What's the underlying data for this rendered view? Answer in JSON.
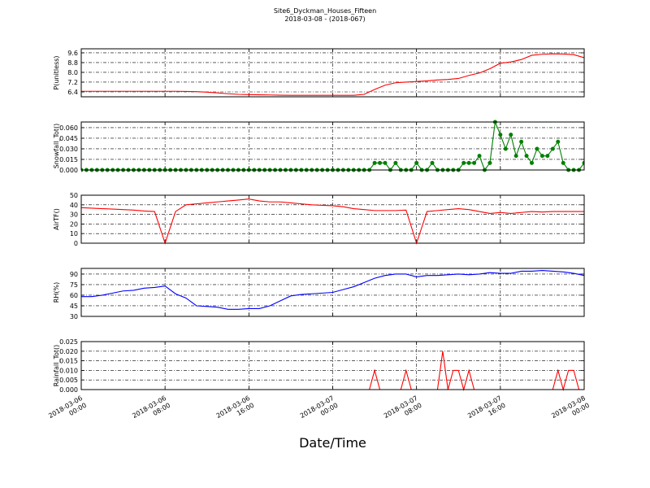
{
  "chart_data": [
    {
      "type": "line",
      "title": "Site6_Dyckman_Houses_Fifteen",
      "subtitle": "2018-03-08 - (2018-067)",
      "ylabel": "P(unitless)",
      "color": "#ff0000",
      "ylim": [
        6.0,
        9.93
      ],
      "yticks": [
        6.4,
        7.2,
        {
          "value": 8,
          "label": "8.0"
        },
        8.8,
        9.6
      ],
      "grid": true,
      "x": [
        "2018-03-06 00:00",
        "2018-03-06 01:00",
        "2018-03-06 02:00",
        "2018-03-06 03:00",
        "2018-03-06 04:00",
        "2018-03-06 05:00",
        "2018-03-06 06:00",
        "2018-03-06 07:00",
        "2018-03-06 08:00",
        "2018-03-06 09:00",
        "2018-03-06 10:00",
        "2018-03-06 11:00",
        "2018-03-06 12:00",
        "2018-03-06 13:00",
        "2018-03-06 14:00",
        "2018-03-06 15:00",
        "2018-03-06 16:00",
        "2018-03-06 17:00",
        "2018-03-06 18:00",
        "2018-03-06 19:00",
        "2018-03-06 20:00",
        "2018-03-06 21:00",
        "2018-03-06 22:00",
        "2018-03-06 23:00",
        "2018-03-07 00:00",
        "2018-03-07 01:00",
        "2018-03-07 02:00",
        "2018-03-07 03:00",
        "2018-03-07 04:00",
        "2018-03-07 05:00",
        "2018-03-07 06:00",
        "2018-03-07 07:00",
        "2018-03-07 08:00",
        "2018-03-07 09:00",
        "2018-03-07 10:00",
        "2018-03-07 11:00",
        "2018-03-07 12:00",
        "2018-03-07 13:00",
        "2018-03-07 14:00",
        "2018-03-07 15:00",
        "2018-03-07 16:00",
        "2018-03-07 17:00",
        "2018-03-07 18:00",
        "2018-03-07 19:00",
        "2018-03-07 20:00",
        "2018-03-07 21:00",
        "2018-03-07 22:00",
        "2018-03-07 23:00",
        "2018-03-08 00:00"
      ],
      "values": [
        6.45,
        6.45,
        6.45,
        6.45,
        6.45,
        6.45,
        6.45,
        6.45,
        6.45,
        6.45,
        6.44,
        6.42,
        6.38,
        6.32,
        6.25,
        6.2,
        6.18,
        6.16,
        6.15,
        6.13,
        6.12,
        6.12,
        6.12,
        6.12,
        6.12,
        6.12,
        6.12,
        6.2,
        6.6,
        6.95,
        7.15,
        7.2,
        7.25,
        7.3,
        7.38,
        7.42,
        7.5,
        7.75,
        7.95,
        8.3,
        8.75,
        8.85,
        9.05,
        9.4,
        9.48,
        9.52,
        9.5,
        9.45,
        9.2
      ]
    },
    {
      "type": "line",
      "ylabel": "Snowfall_Tot()",
      "color": "#008000",
      "marker": "o",
      "ylim": [
        0,
        0.068
      ],
      "yticks": [
        {
          "value": 0,
          "label": "0.000"
        },
        {
          "value": 0.015,
          "label": "0.015"
        },
        {
          "value": 0.03,
          "label": "0.030"
        },
        {
          "value": 0.045,
          "label": "0.045"
        },
        {
          "value": 0.06,
          "label": "0.060"
        }
      ],
      "grid": true,
      "x": [
        "2018-03-06 00:00",
        "2018-03-06 00:30",
        "2018-03-06 01:00",
        "2018-03-06 01:30",
        "2018-03-06 02:00",
        "2018-03-06 02:30",
        "2018-03-06 03:00",
        "2018-03-06 03:30",
        "2018-03-06 04:00",
        "2018-03-06 04:30",
        "2018-03-06 05:00",
        "2018-03-06 05:30",
        "2018-03-06 06:00",
        "2018-03-06 06:30",
        "2018-03-06 07:00",
        "2018-03-06 07:30",
        "2018-03-06 08:00",
        "2018-03-06 08:30",
        "2018-03-06 09:00",
        "2018-03-06 09:30",
        "2018-03-06 10:00",
        "2018-03-06 10:30",
        "2018-03-06 11:00",
        "2018-03-06 11:30",
        "2018-03-06 12:00",
        "2018-03-06 12:30",
        "2018-03-06 13:00",
        "2018-03-06 13:30",
        "2018-03-06 14:00",
        "2018-03-06 14:30",
        "2018-03-06 15:00",
        "2018-03-06 15:30",
        "2018-03-06 16:00",
        "2018-03-06 16:30",
        "2018-03-06 17:00",
        "2018-03-06 17:30",
        "2018-03-06 18:00",
        "2018-03-06 18:30",
        "2018-03-06 19:00",
        "2018-03-06 19:30",
        "2018-03-06 20:00",
        "2018-03-06 20:30",
        "2018-03-06 21:00",
        "2018-03-06 21:30",
        "2018-03-06 22:00",
        "2018-03-06 22:30",
        "2018-03-06 23:00",
        "2018-03-06 23:30",
        "2018-03-07 00:00",
        "2018-03-07 00:30",
        "2018-03-07 01:00",
        "2018-03-07 01:30",
        "2018-03-07 02:00",
        "2018-03-07 02:30",
        "2018-03-07 03:00",
        "2018-03-07 03:30",
        "2018-03-07 04:00",
        "2018-03-07 04:30",
        "2018-03-07 05:00",
        "2018-03-07 05:30",
        "2018-03-07 06:00",
        "2018-03-07 06:30",
        "2018-03-07 07:00",
        "2018-03-07 07:30",
        "2018-03-07 08:00",
        "2018-03-07 08:30",
        "2018-03-07 09:00",
        "2018-03-07 09:30",
        "2018-03-07 10:00",
        "2018-03-07 10:30",
        "2018-03-07 11:00",
        "2018-03-07 11:30",
        "2018-03-07 12:00",
        "2018-03-07 12:30",
        "2018-03-07 13:00",
        "2018-03-07 13:30",
        "2018-03-07 14:00",
        "2018-03-07 14:30",
        "2018-03-07 15:00",
        "2018-03-07 15:30",
        "2018-03-07 16:00",
        "2018-03-07 16:30",
        "2018-03-07 17:00",
        "2018-03-07 17:30",
        "2018-03-07 18:00",
        "2018-03-07 18:30",
        "2018-03-07 19:00",
        "2018-03-07 19:30",
        "2018-03-07 20:00",
        "2018-03-07 20:30",
        "2018-03-07 21:00",
        "2018-03-07 21:30",
        "2018-03-07 22:00",
        "2018-03-07 22:30",
        "2018-03-07 23:00",
        "2018-03-07 23:30",
        "2018-03-08 00:00"
      ],
      "values": [
        0,
        0,
        0,
        0,
        0,
        0,
        0,
        0,
        0,
        0,
        0,
        0,
        0,
        0,
        0,
        0,
        0,
        0,
        0,
        0,
        0,
        0,
        0,
        0,
        0,
        0,
        0,
        0,
        0,
        0,
        0,
        0,
        0,
        0,
        0,
        0,
        0,
        0,
        0,
        0,
        0,
        0,
        0,
        0,
        0,
        0,
        0,
        0,
        0,
        0,
        0,
        0,
        0,
        0,
        0,
        0,
        0.01,
        0.01,
        0.01,
        0,
        0.01,
        0,
        0,
        0,
        0.01,
        0,
        0,
        0.01,
        0,
        0,
        0,
        0,
        0,
        0.01,
        0.01,
        0.01,
        0.02,
        0,
        0.01,
        0.068,
        0.05,
        0.03,
        0.05,
        0.02,
        0.04,
        0.02,
        0.01,
        0.03,
        0.02,
        0.02,
        0.03,
        0.04,
        0.01,
        0,
        0,
        0,
        0.01
      ]
    },
    {
      "type": "line",
      "ylabel": "AirTF()",
      "color": "#ff0000",
      "ylim": [
        0,
        50
      ],
      "yticks": [
        0,
        10,
        20,
        30,
        40,
        50
      ],
      "grid": true,
      "x": [
        "2018-03-06 00:00",
        "2018-03-06 01:00",
        "2018-03-06 02:00",
        "2018-03-06 03:00",
        "2018-03-06 04:00",
        "2018-03-06 05:00",
        "2018-03-06 06:00",
        "2018-03-06 07:00",
        "2018-03-06 08:00",
        "2018-03-06 09:00",
        "2018-03-06 10:00",
        "2018-03-06 11:00",
        "2018-03-06 12:00",
        "2018-03-06 13:00",
        "2018-03-06 14:00",
        "2018-03-06 15:00",
        "2018-03-06 16:00",
        "2018-03-06 17:00",
        "2018-03-06 18:00",
        "2018-03-06 19:00",
        "2018-03-06 20:00",
        "2018-03-06 21:00",
        "2018-03-06 22:00",
        "2018-03-06 23:00",
        "2018-03-07 00:00",
        "2018-03-07 01:00",
        "2018-03-07 02:00",
        "2018-03-07 03:00",
        "2018-03-07 04:00",
        "2018-03-07 05:00",
        "2018-03-07 06:00",
        "2018-03-07 07:00",
        "2018-03-07 08:00",
        "2018-03-07 09:00",
        "2018-03-07 10:00",
        "2018-03-07 11:00",
        "2018-03-07 12:00",
        "2018-03-07 13:00",
        "2018-03-07 14:00",
        "2018-03-07 15:00",
        "2018-03-07 16:00",
        "2018-03-07 17:00",
        "2018-03-07 18:00",
        "2018-03-07 19:00",
        "2018-03-07 20:00",
        "2018-03-07 21:00",
        "2018-03-07 22:00",
        "2018-03-07 23:00",
        "2018-03-08 00:00"
      ],
      "values": [
        37,
        36.5,
        36,
        35.5,
        35,
        34.5,
        33.5,
        33,
        0,
        33,
        40,
        41,
        42,
        43,
        44,
        45,
        46,
        44,
        43,
        43,
        42,
        41,
        40,
        39.5,
        39,
        38,
        36,
        35,
        34,
        34,
        34,
        34.5,
        0,
        33,
        34,
        35,
        36,
        35,
        33,
        31,
        32,
        31,
        32,
        33,
        32.5,
        33,
        33,
        33,
        33
      ]
    },
    {
      "type": "line",
      "ylabel": "RH(%)",
      "color": "#0000ff",
      "ylim": [
        30,
        98
      ],
      "yticks": [
        30,
        45,
        60,
        75,
        90
      ],
      "grid": true,
      "x": [
        "2018-03-06 00:00",
        "2018-03-06 01:00",
        "2018-03-06 02:00",
        "2018-03-06 03:00",
        "2018-03-06 04:00",
        "2018-03-06 05:00",
        "2018-03-06 06:00",
        "2018-03-06 07:00",
        "2018-03-06 08:00",
        "2018-03-06 09:00",
        "2018-03-06 10:00",
        "2018-03-06 11:00",
        "2018-03-06 12:00",
        "2018-03-06 13:00",
        "2018-03-06 14:00",
        "2018-03-06 15:00",
        "2018-03-06 16:00",
        "2018-03-06 17:00",
        "2018-03-06 18:00",
        "2018-03-06 19:00",
        "2018-03-06 20:00",
        "2018-03-06 21:00",
        "2018-03-06 22:00",
        "2018-03-06 23:00",
        "2018-03-07 00:00",
        "2018-03-07 01:00",
        "2018-03-07 02:00",
        "2018-03-07 03:00",
        "2018-03-07 04:00",
        "2018-03-07 05:00",
        "2018-03-07 06:00",
        "2018-03-07 07:00",
        "2018-03-07 08:00",
        "2018-03-07 09:00",
        "2018-03-07 10:00",
        "2018-03-07 11:00",
        "2018-03-07 12:00",
        "2018-03-07 13:00",
        "2018-03-07 14:00",
        "2018-03-07 15:00",
        "2018-03-07 16:00",
        "2018-03-07 17:00",
        "2018-03-07 18:00",
        "2018-03-07 19:00",
        "2018-03-07 20:00",
        "2018-03-07 21:00",
        "2018-03-07 22:00",
        "2018-03-07 23:00",
        "2018-03-08 00:00"
      ],
      "values": [
        58,
        58,
        60,
        63,
        66,
        67,
        70,
        71,
        73,
        62,
        56,
        45,
        44,
        43,
        40,
        40,
        41,
        41,
        45,
        52,
        59,
        61,
        62,
        63,
        64,
        68,
        72,
        78,
        84,
        88,
        90,
        90,
        86,
        88,
        88,
        89,
        90,
        89,
        90,
        92,
        91,
        91,
        94,
        94,
        95,
        94,
        93,
        91,
        88
      ]
    },
    {
      "type": "line",
      "ylabel": "Rainfall_Tot()",
      "xlabel": "Date/Time",
      "color": "#ff0000",
      "ylim": [
        0,
        0.025
      ],
      "yticks": [
        {
          "value": 0,
          "label": "0.000"
        },
        {
          "value": 0.005,
          "label": "0.005"
        },
        {
          "value": 0.01,
          "label": "0.010"
        },
        {
          "value": 0.015,
          "label": "0.015"
        },
        {
          "value": 0.02,
          "label": "0.020"
        },
        {
          "value": 0.025,
          "label": "0.025"
        }
      ],
      "grid": true,
      "xlim": [
        "2018-03-06 00:00",
        "2018-03-08 00:00"
      ],
      "xticks": [
        "2018-03-06 00:00",
        "2018-03-06 08:00",
        "2018-03-06 16:00",
        "2018-03-07 00:00",
        "2018-03-07 08:00",
        "2018-03-07 16:00",
        "2018-03-08 00:00"
      ],
      "x": [
        "2018-03-06 00:00",
        "2018-03-06 00:30",
        "2018-03-06 01:00",
        "2018-03-06 01:30",
        "2018-03-06 02:00",
        "2018-03-06 02:30",
        "2018-03-06 03:00",
        "2018-03-06 03:30",
        "2018-03-06 04:00",
        "2018-03-06 04:30",
        "2018-03-06 05:00",
        "2018-03-06 05:30",
        "2018-03-06 06:00",
        "2018-03-06 06:30",
        "2018-03-06 07:00",
        "2018-03-06 07:30",
        "2018-03-06 08:00",
        "2018-03-06 08:30",
        "2018-03-06 09:00",
        "2018-03-06 09:30",
        "2018-03-06 10:00",
        "2018-03-06 10:30",
        "2018-03-06 11:00",
        "2018-03-06 11:30",
        "2018-03-06 12:00",
        "2018-03-06 12:30",
        "2018-03-06 13:00",
        "2018-03-06 13:30",
        "2018-03-06 14:00",
        "2018-03-06 14:30",
        "2018-03-06 15:00",
        "2018-03-06 15:30",
        "2018-03-06 16:00",
        "2018-03-06 16:30",
        "2018-03-06 17:00",
        "2018-03-06 17:30",
        "2018-03-06 18:00",
        "2018-03-06 18:30",
        "2018-03-06 19:00",
        "2018-03-06 19:30",
        "2018-03-06 20:00",
        "2018-03-06 20:30",
        "2018-03-06 21:00",
        "2018-03-06 21:30",
        "2018-03-06 22:00",
        "2018-03-06 22:30",
        "2018-03-06 23:00",
        "2018-03-06 23:30",
        "2018-03-07 00:00",
        "2018-03-07 00:30",
        "2018-03-07 01:00",
        "2018-03-07 01:30",
        "2018-03-07 02:00",
        "2018-03-07 02:30",
        "2018-03-07 03:00",
        "2018-03-07 03:30",
        "2018-03-07 04:00",
        "2018-03-07 04:30",
        "2018-03-07 05:00",
        "2018-03-07 05:30",
        "2018-03-07 06:00",
        "2018-03-07 06:30",
        "2018-03-07 07:00",
        "2018-03-07 07:30",
        "2018-03-07 08:00",
        "2018-03-07 08:30",
        "2018-03-07 09:00",
        "2018-03-07 09:30",
        "2018-03-07 10:00",
        "2018-03-07 10:30",
        "2018-03-07 11:00",
        "2018-03-07 11:30",
        "2018-03-07 12:00",
        "2018-03-07 12:30",
        "2018-03-07 13:00",
        "2018-03-07 13:30",
        "2018-03-07 14:00",
        "2018-03-07 14:30",
        "2018-03-07 15:00",
        "2018-03-07 15:30",
        "2018-03-07 16:00",
        "2018-03-07 16:30",
        "2018-03-07 17:00",
        "2018-03-07 17:30",
        "2018-03-07 18:00",
        "2018-03-07 18:30",
        "2018-03-07 19:00",
        "2018-03-07 19:30",
        "2018-03-07 20:00",
        "2018-03-07 20:30",
        "2018-03-07 21:00",
        "2018-03-07 21:30",
        "2018-03-07 22:00",
        "2018-03-07 22:30",
        "2018-03-07 23:00",
        "2018-03-07 23:30",
        "2018-03-08 00:00"
      ],
      "values": [
        0,
        0,
        0,
        0,
        0,
        0,
        0,
        0,
        0,
        0,
        0,
        0,
        0,
        0,
        0,
        0,
        0,
        0,
        0,
        0,
        0,
        0,
        0,
        0,
        0,
        0,
        0,
        0,
        0,
        0,
        0,
        0,
        0,
        0,
        0,
        0,
        0,
        0,
        0,
        0,
        0,
        0,
        0,
        0,
        0,
        0,
        0,
        0,
        0,
        0,
        0,
        0,
        0,
        0,
        0,
        0,
        0.01,
        0,
        0,
        0,
        0,
        0,
        0.01,
        0,
        0,
        0,
        0,
        0,
        0,
        0.02,
        0,
        0.01,
        0.01,
        0,
        0.01,
        0,
        0,
        0,
        0,
        0,
        0,
        0,
        0,
        0,
        0,
        0,
        0,
        0,
        0,
        0,
        0,
        0.01,
        0,
        0.01,
        0.01,
        0,
        0
      ]
    }
  ]
}
